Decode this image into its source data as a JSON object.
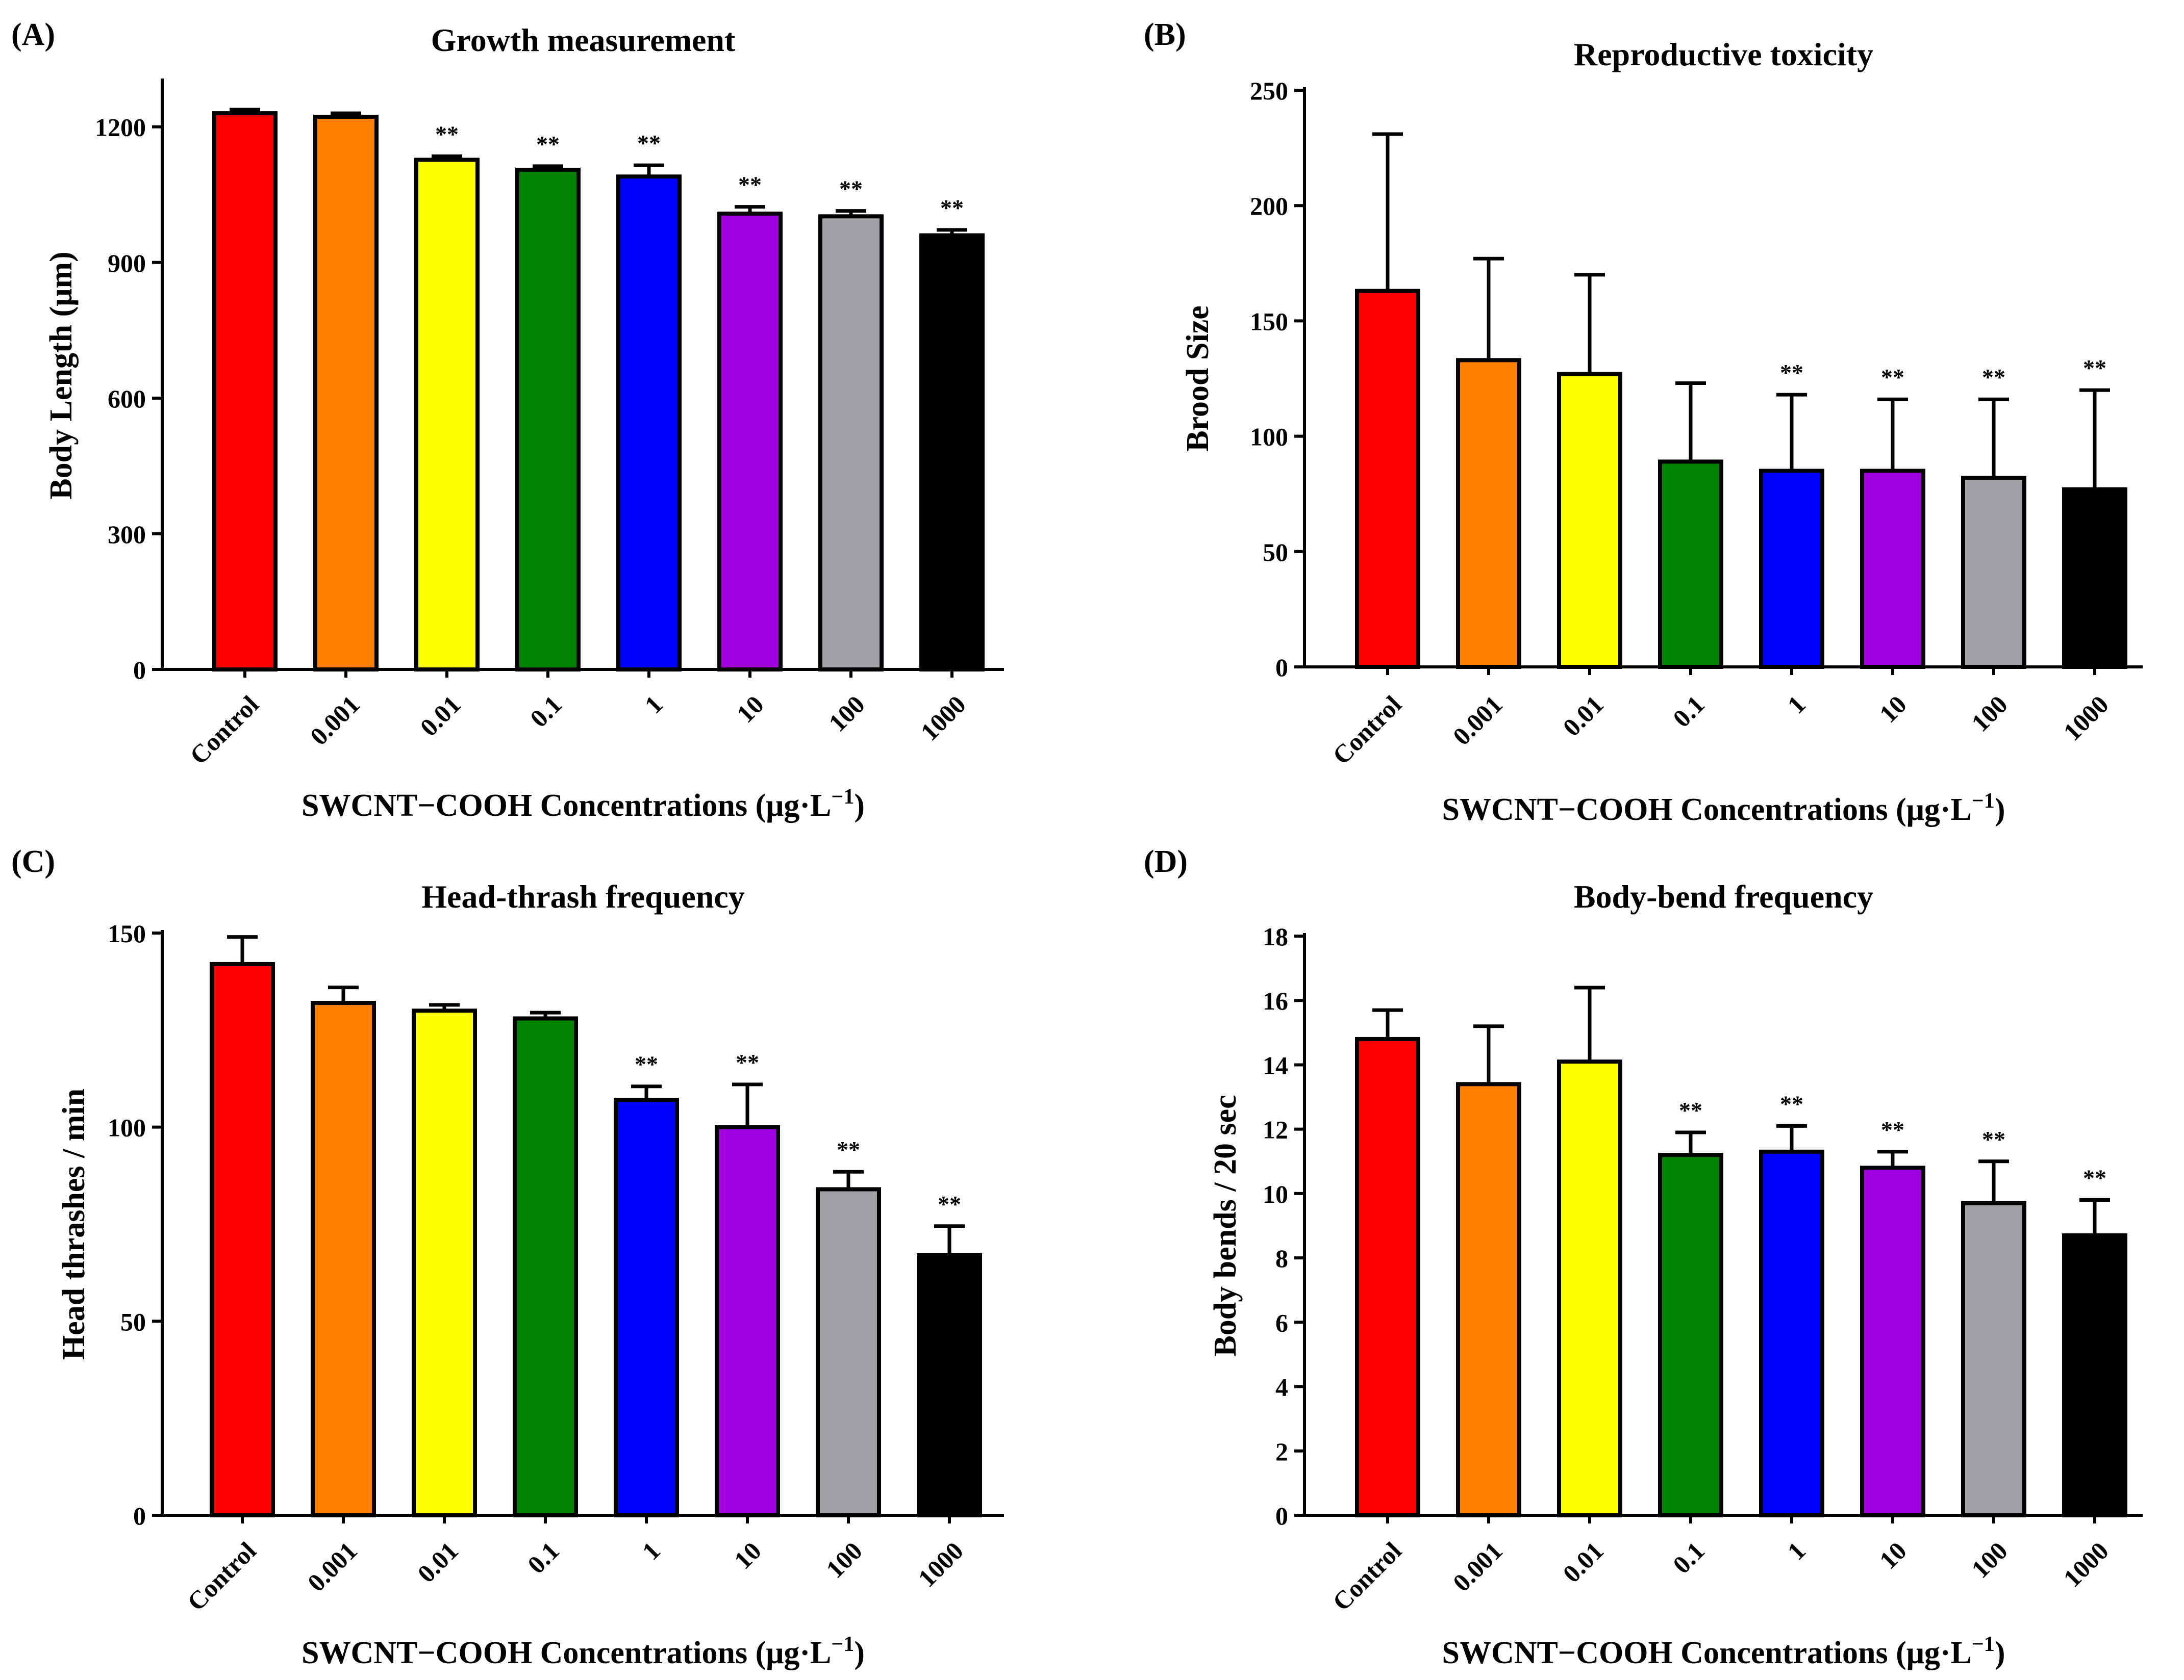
{
  "figure": {
    "xlabel_prefix": "SWCNT−COOH Concentrations (μg·L",
    "xlabel_exp": "−1",
    "xlabel_suffix": ")",
    "significance_marker": "**",
    "bar_colors": [
      "#ff0000",
      "#ff7f00",
      "#ffff00",
      "#008000",
      "#0000ff",
      "#a000e0",
      "#a0a0a4",
      "#000000"
    ]
  },
  "chart_data": [
    {
      "panel": "(A)",
      "type": "bar",
      "title": "Growth measurement",
      "ylabel": "Body Length (μm)",
      "xlabel": "SWCNT−COOH Concentrations (μg·L⁻¹)",
      "categories": [
        "Control",
        "0.001",
        "0.01",
        "0.1",
        "1",
        "10",
        "100",
        "1000"
      ],
      "values": [
        1230,
        1222,
        1127,
        1105,
        1090,
        1008,
        1002,
        960
      ],
      "errors": [
        8,
        8,
        8,
        8,
        25,
        15,
        12,
        12
      ],
      "significant": [
        false,
        false,
        true,
        true,
        true,
        true,
        true,
        true
      ],
      "ylim": [
        0,
        1300
      ],
      "yticks": [
        0,
        300,
        600,
        900,
        1200
      ],
      "ytick_labels": [
        "0",
        "300",
        "600",
        "900",
        "1200"
      ]
    },
    {
      "panel": "(B)",
      "type": "bar",
      "title": "Reproductive toxicity",
      "ylabel": "Brood Size",
      "xlabel": "SWCNT−COOH Concentrations (μg·L⁻¹)",
      "categories": [
        "Control",
        "0.001",
        "0.01",
        "0.1",
        "1",
        "10",
        "100",
        "1000"
      ],
      "values": [
        163,
        133,
        127,
        89,
        85,
        85,
        82,
        77
      ],
      "errors": [
        68,
        44,
        43,
        34,
        33,
        31,
        34,
        43
      ],
      "significant": [
        false,
        false,
        false,
        false,
        true,
        true,
        true,
        true
      ],
      "ylim": [
        0,
        250
      ],
      "yticks": [
        0,
        50,
        100,
        150,
        200,
        250
      ],
      "ytick_labels": [
        "0",
        "50",
        "100",
        "150",
        "200",
        "250"
      ]
    },
    {
      "panel": "(C)",
      "type": "bar",
      "title": "Head-thrash frequency",
      "ylabel": "Head thrashes / min",
      "xlabel": "SWCNT−COOH Concentrations (μg·L⁻¹)",
      "categories": [
        "Control",
        "0.001",
        "0.01",
        "0.1",
        "1",
        "10",
        "100",
        "1000"
      ],
      "values": [
        142,
        132,
        130,
        128,
        107,
        100,
        84,
        67
      ],
      "errors": [
        7,
        4,
        1.5,
        1.5,
        3.5,
        11,
        4.5,
        7.5
      ],
      "significant": [
        false,
        false,
        false,
        false,
        true,
        true,
        true,
        true
      ],
      "ylim": [
        0,
        150
      ],
      "yticks": [
        0,
        50,
        100,
        150
      ],
      "ytick_labels": [
        "0",
        "50",
        "100",
        "150"
      ]
    },
    {
      "panel": "(D)",
      "type": "bar",
      "title": "Body-bend frequency",
      "ylabel": "Body bends / 20 sec",
      "xlabel": "SWCNT−COOH Concentrations (μg·L⁻¹)",
      "categories": [
        "Control",
        "0.001",
        "0.01",
        "0.1",
        "1",
        "10",
        "100",
        "1000"
      ],
      "values": [
        14.8,
        13.4,
        14.1,
        11.2,
        11.3,
        10.8,
        9.7,
        8.7
      ],
      "errors": [
        0.9,
        1.8,
        2.3,
        0.7,
        0.8,
        0.5,
        1.3,
        1.1
      ],
      "significant": [
        false,
        false,
        false,
        true,
        true,
        true,
        true,
        true
      ],
      "ylim": [
        0,
        18
      ],
      "yticks": [
        0,
        2,
        4,
        6,
        8,
        10,
        12,
        14,
        16,
        18
      ],
      "ytick_labels": [
        "0",
        "2",
        "4",
        "6",
        "8",
        "10",
        "12",
        "14",
        "16",
        "18"
      ]
    }
  ]
}
